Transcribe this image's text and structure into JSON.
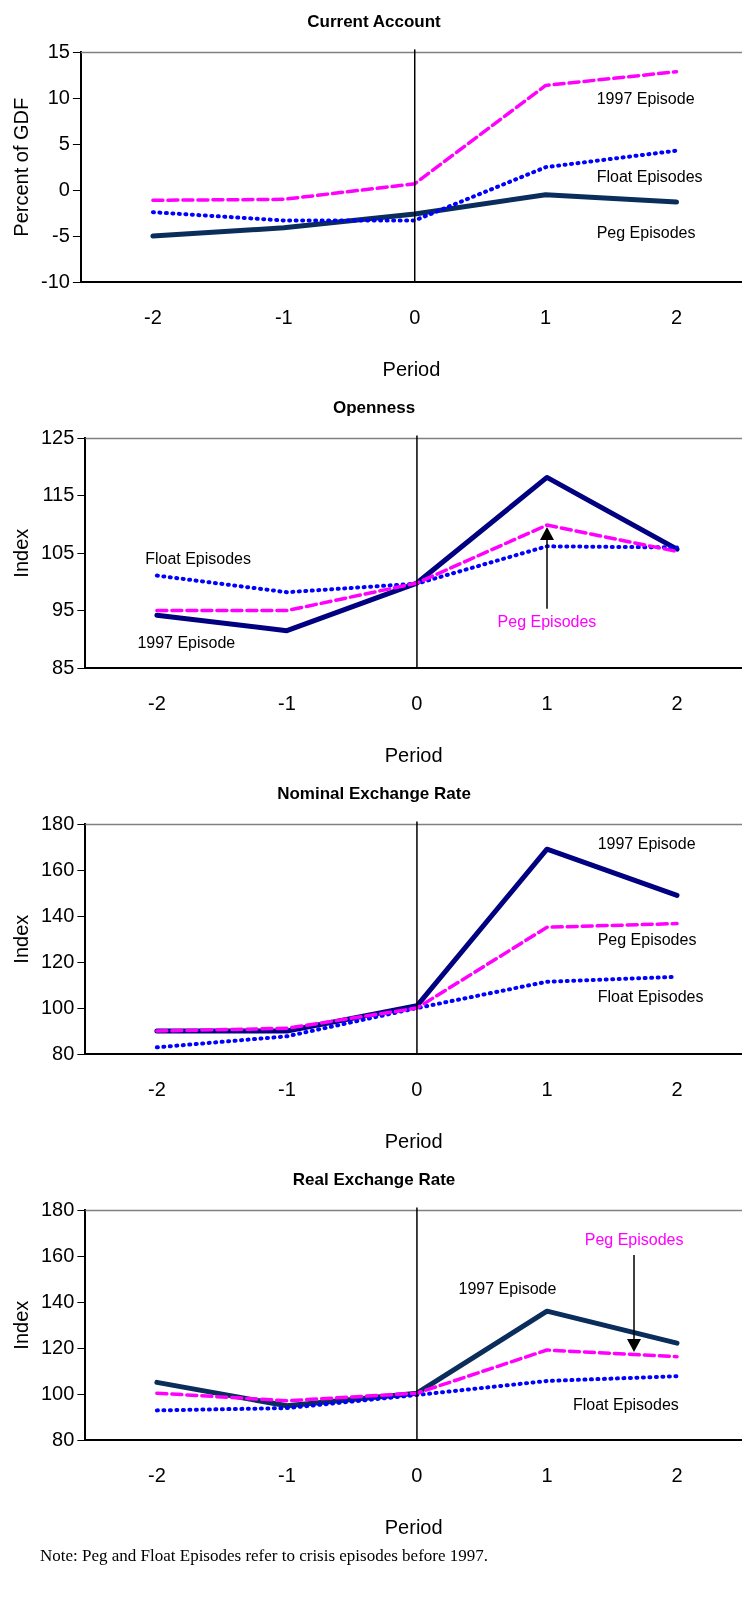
{
  "chart_data": [
    {
      "type": "line",
      "title": "Current Account",
      "xlabel": "Period",
      "ylabel": "Percent of GDF",
      "x": [
        -2,
        -1,
        0,
        1,
        2
      ],
      "xlim": [
        -2.55,
        2.5
      ],
      "xticks": [
        -2,
        -1,
        0,
        1,
        2
      ],
      "ylim": [
        -10,
        15
      ],
      "yticks": [
        -10,
        -5,
        0,
        5,
        10,
        15
      ],
      "grid": false,
      "legend": false,
      "marker": "none",
      "series": [
        {
          "name": "Peg Episodes",
          "color": "#0a2d5c",
          "line_style": "solid",
          "values": [
            -5.0,
            -4.1,
            -2.6,
            -0.5,
            -1.3
          ]
        },
        {
          "name": "Float Episodes",
          "color": "#0000ff",
          "line_style": "dotted",
          "values": [
            -2.4,
            -3.3,
            -3.3,
            2.5,
            4.3
          ]
        },
        {
          "name": "1997 Episode",
          "color": "#ff00ff",
          "line_style": "dashed",
          "values": [
            -1.1,
            -1.0,
            0.7,
            11.4,
            12.9
          ]
        }
      ],
      "ref_lines": [
        {
          "axis": "x",
          "value": 0,
          "color": "#000000"
        }
      ]
    },
    {
      "type": "line",
      "title": "Openness",
      "xlabel": "Period",
      "ylabel": "Index",
      "x": [
        -2,
        -1,
        0,
        1,
        2
      ],
      "xlim": [
        -2.55,
        2.5
      ],
      "xticks": [
        -2,
        -1,
        0,
        1,
        2
      ],
      "ylim": [
        85,
        125
      ],
      "yticks": [
        85,
        95,
        105,
        115,
        125
      ],
      "grid": false,
      "legend": false,
      "marker": "none",
      "series": [
        {
          "name": "1997 Episode",
          "color": "#000080",
          "line_style": "solid",
          "values": [
            94.2,
            91.5,
            99.8,
            118.2,
            105.7
          ]
        },
        {
          "name": "Float Episodes",
          "color": "#0000ff",
          "line_style": "dotted",
          "values": [
            101.1,
            98.2,
            99.7,
            106.2,
            106
          ]
        },
        {
          "name": "Peg Episodes",
          "color": "#ff00ff",
          "line_style": "dashed",
          "values": [
            95,
            95,
            99.8,
            109.9,
            105.3
          ]
        }
      ],
      "ref_lines": [
        {
          "axis": "x",
          "value": 0,
          "color": "#000000"
        }
      ]
    },
    {
      "type": "line",
      "title": "Nominal Exchange Rate",
      "xlabel": "Period",
      "ylabel": "Index",
      "x": [
        -2,
        -1,
        0,
        1,
        2
      ],
      "xlim": [
        -2.55,
        2.5
      ],
      "xticks": [
        -2,
        -1,
        0,
        1,
        2
      ],
      "ylim": [
        80,
        180
      ],
      "yticks": [
        80,
        100,
        120,
        140,
        160,
        180
      ],
      "grid": false,
      "legend": false,
      "marker": "none",
      "series": [
        {
          "name": "1997 Episode",
          "color": "#000080",
          "line_style": "solid",
          "values": [
            90,
            90,
            101,
            169.2,
            149.1
          ]
        },
        {
          "name": "Float Episodes",
          "color": "#0000ff",
          "line_style": "dotted",
          "values": [
            82.9,
            87.7,
            100,
            111.5,
            113.6
          ]
        },
        {
          "name": "Peg Episodes",
          "color": "#ff00ff",
          "line_style": "dashed",
          "values": [
            90,
            91.2,
            100,
            135.2,
            136.8
          ]
        }
      ],
      "ref_lines": [
        {
          "axis": "x",
          "value": 0,
          "color": "#000000"
        }
      ]
    },
    {
      "type": "line",
      "title": "Real Exchange Rate",
      "xlabel": "Period",
      "ylabel": "Index",
      "x": [
        -2,
        -1,
        0,
        1,
        2
      ],
      "xlim": [
        -2.55,
        2.5
      ],
      "xticks": [
        -2,
        -1,
        0,
        1,
        2
      ],
      "ylim": [
        80,
        180
      ],
      "yticks": [
        80,
        100,
        120,
        140,
        160,
        180
      ],
      "grid": false,
      "legend": false,
      "marker": "none",
      "series": [
        {
          "name": "1997 Episode",
          "color": "#0a2d5c",
          "line_style": "solid",
          "values": [
            105.1,
            94.9,
            100.4,
            136.1,
            122.2
          ]
        },
        {
          "name": "Float Episodes",
          "color": "#0000ff",
          "line_style": "dotted",
          "values": [
            92.9,
            93.9,
            99.6,
            105.7,
            107.8
          ]
        },
        {
          "name": "Peg Episodes",
          "color": "#ff00ff",
          "line_style": "dashed",
          "values": [
            100.4,
            97.1,
            100.4,
            119.2,
            116.3
          ]
        }
      ],
      "ref_lines": [
        {
          "axis": "x",
          "value": 0,
          "color": "#000000"
        }
      ],
      "annotations": [
        "Note: Peg and Float Episodes refer to crisis episodes before 1997."
      ]
    }
  ]
}
